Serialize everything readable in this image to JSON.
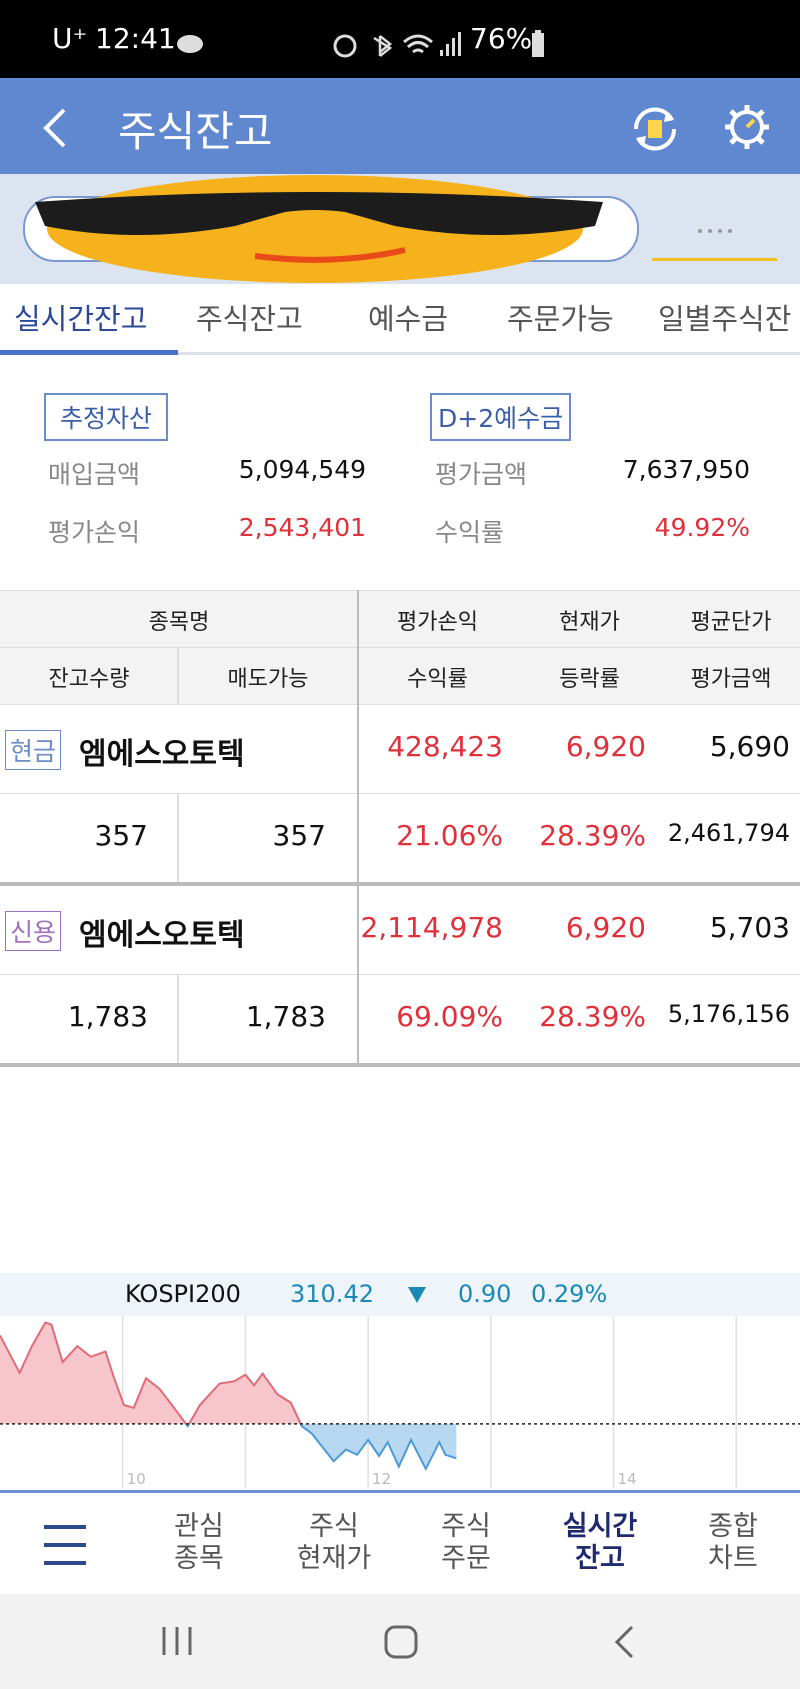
{
  "status_bar": {
    "carrier": "U⁺",
    "time": "12:41",
    "battery": "76%"
  },
  "header": {
    "title": "주식잔고"
  },
  "tabs": {
    "items": [
      "실시간잔고",
      "주식잔고",
      "예수금",
      "주문가능",
      "일별주식잔"
    ],
    "active": 0
  },
  "summary": {
    "left_badge": "추정자산",
    "right_badge": "D+2예수금",
    "rows": [
      [
        "매입금액",
        "5,094,549",
        "평가금액",
        "7,637,950"
      ],
      [
        "평가손익",
        "2,543,401",
        "수익률",
        "49.92%"
      ]
    ]
  },
  "table": {
    "header_top": [
      "종목명",
      "평가손익",
      "현재가",
      "평균단가"
    ],
    "header_bottom": [
      "잔고수량",
      "매도가능",
      "수익률",
      "등락률",
      "평가금액"
    ],
    "rows": [
      {
        "tag": "현금",
        "name": "엠에스오토텍",
        "values": [
          "428,423",
          "6,920",
          "5,690"
        ],
        "sub": [
          "357",
          "357",
          "21.06%",
          "28.39%",
          "2,461,794"
        ]
      },
      {
        "tag": "신용",
        "name": "엠에스오토텍",
        "values": [
          "2,114,978",
          "6,920",
          "5,703"
        ],
        "sub": [
          "1,783",
          "1,783",
          "69.09%",
          "28.39%",
          "5,176,156"
        ]
      }
    ]
  },
  "index_ticker": {
    "name": "KOSPI200",
    "value": "310.42",
    "change": "0.90",
    "rate": "0.29%"
  },
  "index_chart": {
    "type": "area",
    "x": [
      9.0,
      9.16,
      9.26,
      9.37,
      9.42,
      9.51,
      9.63,
      9.74,
      9.86,
      9.93,
      10.01,
      10.09,
      10.19,
      10.3,
      10.4,
      10.53,
      10.63,
      10.79,
      10.91,
      11.0,
      11.07,
      11.14,
      11.26,
      11.37,
      11.46,
      11.54,
      11.72,
      11.82,
      11.91,
      12.0,
      12.09,
      12.16,
      12.25,
      12.35,
      12.47,
      12.58,
      12.63,
      12.72
    ],
    "values": [
      2.32,
      1.34,
      2.04,
      2.66,
      2.6,
      1.62,
      2.04,
      1.76,
      1.9,
      1.2,
      0.5,
      0.42,
      1.2,
      0.92,
      0.5,
      -0.06,
      0.5,
      1.06,
      1.12,
      1.29,
      1.01,
      1.32,
      0.78,
      0.56,
      -0.06,
      -0.25,
      -0.98,
      -0.67,
      -0.81,
      -0.42,
      -0.84,
      -0.48,
      -1.12,
      -0.42,
      -1.18,
      -0.48,
      -0.81,
      -0.9
    ],
    "xlim": [
      9,
      15.52
    ],
    "ylim": [
      -1.68,
      2.83
    ],
    "xticks": [
      10,
      12,
      14
    ],
    "xgrid": [
      10,
      11,
      12,
      13,
      14,
      15
    ]
  },
  "bottom_nav": {
    "items": [
      [
        "관심",
        "종목"
      ],
      [
        "주식",
        "현재가"
      ],
      [
        "주식",
        "주문"
      ],
      [
        "실시간",
        "잔고"
      ],
      [
        "종합",
        "차트"
      ]
    ],
    "active": 3
  }
}
